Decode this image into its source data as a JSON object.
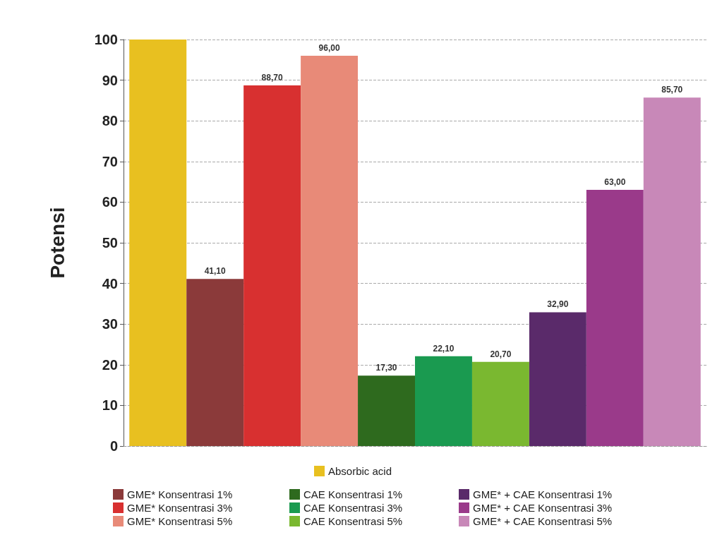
{
  "chart_data": {
    "type": "bar",
    "ylabel": "Potensi",
    "categories": [
      null
    ],
    "ylim": [
      0,
      100
    ],
    "yticks": [
      0,
      10,
      20,
      30,
      40,
      50,
      60,
      70,
      80,
      90,
      100
    ],
    "grid": "y",
    "legend": "bottom",
    "series": [
      {
        "name": "Absorbic acid",
        "color": "#e8c020",
        "values": [
          100
        ],
        "value_labels": [
          null
        ]
      },
      {
        "name": "GME* Konsentrasi 1%",
        "color": "#8b3a3a",
        "values": [
          41.1
        ],
        "value_labels": [
          "41,10"
        ]
      },
      {
        "name": "GME* Konsentrasi 3%",
        "color": "#d83030",
        "values": [
          88.7
        ],
        "value_labels": [
          "88,70"
        ]
      },
      {
        "name": "GME* Konsentrasi 5%",
        "color": "#e88a78",
        "values": [
          96
        ],
        "value_labels": [
          "96,00"
        ]
      },
      {
        "name": "CAE Konsentrasi 1%",
        "color": "#2e6a1e",
        "values": [
          17.3
        ],
        "value_labels": [
          "17,30"
        ]
      },
      {
        "name": "CAE Konsentrasi 3%",
        "color": "#1a9a50",
        "values": [
          22.1
        ],
        "value_labels": [
          "22,10"
        ]
      },
      {
        "name": "CAE Konsentrasi 5%",
        "color": "#7ab830",
        "values": [
          20.7
        ],
        "value_labels": [
          "20,70"
        ]
      },
      {
        "name": "GME* + CAE Konsentrasi 1%",
        "color": "#5a2a6a",
        "values": [
          32.9
        ],
        "value_labels": [
          "32,90"
        ]
      },
      {
        "name": "GME* + CAE Konsentrasi 3%",
        "color": "#9a3a8a",
        "values": [
          63
        ],
        "value_labels": [
          "63,00"
        ]
      },
      {
        "name": "GME* + CAE Konsentrasi 5%",
        "color": "#c888b8",
        "values": [
          85.7
        ],
        "value_labels": [
          "85,70"
        ]
      }
    ]
  }
}
